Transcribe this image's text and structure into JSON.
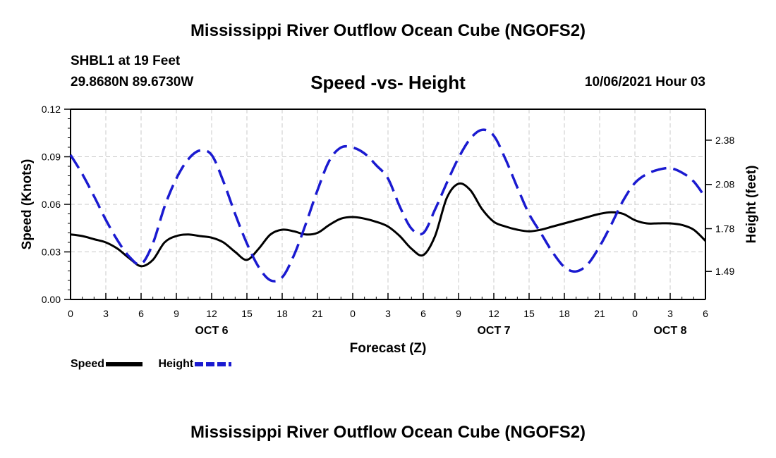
{
  "header": {
    "title": "Mississippi River Outflow Ocean Cube (NGOFS2)",
    "station": "SHBL1 at 19 Feet",
    "coords": "29.8680N  89.6730W",
    "subtitle": "Speed -vs- Height",
    "datetime": "10/06/2021 Hour 03"
  },
  "footer": {
    "title": "Mississippi River Outflow Ocean Cube (NGOFS2)"
  },
  "legend": {
    "speed": "Speed",
    "height": "Height"
  },
  "colors": {
    "speed": "#000000",
    "height": "#1a1ad0",
    "grid": "#c8c8c8"
  },
  "chart_data": {
    "type": "line",
    "title": "Speed -vs- Height",
    "xlabel": "Forecast (Z)",
    "ylabel": "Speed (Knots)",
    "y2label": "Height (feet)",
    "xlim": [
      0,
      54
    ],
    "ylim": [
      0,
      0.12
    ],
    "y2lim": [
      1.3,
      2.59
    ],
    "xticks": [
      0,
      3,
      6,
      9,
      12,
      15,
      18,
      21,
      24,
      27,
      30,
      33,
      36,
      39,
      42,
      45,
      48,
      51,
      54
    ],
    "xtick_labels": [
      "0",
      "3",
      "6",
      "9",
      "12",
      "15",
      "18",
      "21",
      "0",
      "3",
      "6",
      "9",
      "12",
      "15",
      "18",
      "21",
      "0",
      "3",
      "6"
    ],
    "day_labels": [
      {
        "x": 12,
        "label": "OCT 6"
      },
      {
        "x": 36,
        "label": "OCT 7"
      },
      {
        "x": 51,
        "label": "OCT 8"
      }
    ],
    "yticks": [
      0,
      0.03,
      0.06,
      0.09,
      0.12
    ],
    "ytick_labels": [
      "0.00",
      "0.03",
      "0.06",
      "0.09",
      "0.12"
    ],
    "y2ticks": [
      1.49,
      1.78,
      2.08,
      2.38
    ],
    "y2tick_labels": [
      "1.49",
      "1.78",
      "2.08",
      "2.38"
    ],
    "series": [
      {
        "name": "Speed",
        "axis": "left",
        "style": "solid",
        "x": [
          0,
          1,
          2,
          3,
          4,
          5,
          6,
          7,
          8,
          9,
          10,
          11,
          12,
          13,
          14,
          15,
          16,
          17,
          18,
          19,
          20,
          21,
          22,
          23,
          24,
          25,
          26,
          27,
          28,
          29,
          30,
          31,
          32,
          33,
          34,
          35,
          36,
          37,
          38,
          39,
          40,
          41,
          42,
          43,
          44,
          45,
          46,
          47,
          48,
          49,
          50,
          51,
          52,
          53,
          54
        ],
        "values": [
          0.041,
          0.04,
          0.038,
          0.036,
          0.032,
          0.026,
          0.021,
          0.025,
          0.036,
          0.04,
          0.041,
          0.04,
          0.039,
          0.036,
          0.03,
          0.025,
          0.032,
          0.041,
          0.044,
          0.043,
          0.041,
          0.042,
          0.047,
          0.051,
          0.052,
          0.051,
          0.049,
          0.046,
          0.04,
          0.032,
          0.028,
          0.04,
          0.064,
          0.073,
          0.069,
          0.057,
          0.049,
          0.046,
          0.044,
          0.043,
          0.044,
          0.046,
          0.048,
          0.05,
          0.052,
          0.054,
          0.055,
          0.054,
          0.05,
          0.048,
          0.048,
          0.048,
          0.047,
          0.044,
          0.037
        ]
      },
      {
        "name": "Height",
        "axis": "right",
        "style": "dashed",
        "x": [
          0,
          1,
          2,
          3,
          4,
          5,
          6,
          7,
          8,
          9,
          10,
          11,
          12,
          13,
          14,
          15,
          16,
          17,
          18,
          19,
          20,
          21,
          22,
          23,
          24,
          25,
          26,
          27,
          28,
          29,
          30,
          31,
          32,
          33,
          34,
          35,
          36,
          37,
          38,
          39,
          40,
          41,
          42,
          43,
          44,
          45,
          46,
          47,
          48,
          49,
          50,
          51,
          52,
          53,
          54
        ],
        "values": [
          2.28,
          2.15,
          2.0,
          1.84,
          1.7,
          1.59,
          1.54,
          1.68,
          1.93,
          2.12,
          2.25,
          2.31,
          2.28,
          2.1,
          1.88,
          1.68,
          1.52,
          1.43,
          1.45,
          1.6,
          1.81,
          2.04,
          2.24,
          2.33,
          2.33,
          2.29,
          2.21,
          2.12,
          1.93,
          1.78,
          1.75,
          1.91,
          2.09,
          2.26,
          2.39,
          2.45,
          2.41,
          2.25,
          2.06,
          1.88,
          1.75,
          1.62,
          1.52,
          1.49,
          1.54,
          1.66,
          1.81,
          1.97,
          2.09,
          2.15,
          2.18,
          2.19,
          2.16,
          2.1,
          1.99
        ]
      }
    ]
  }
}
